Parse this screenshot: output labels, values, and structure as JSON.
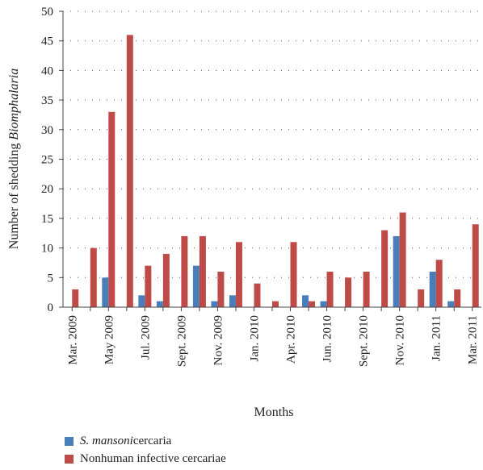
{
  "chart_data": {
    "type": "bar",
    "ylabel_prefix": "Number of shedding ",
    "ylabel_italic": "Biomphalaria",
    "xlabel": "Months",
    "ylim": [
      0,
      50
    ],
    "yticks": [
      0,
      5,
      10,
      15,
      20,
      25,
      30,
      35,
      40,
      45,
      50
    ],
    "grid": "horizontal-dotted",
    "legend_position": "bottom-left",
    "categories": [
      "Mar. 2009",
      "",
      "May 2009",
      "",
      "Jul. 2009",
      "",
      "Sept. 2009",
      "",
      "Nov. 2009",
      "",
      "Jan. 2010",
      "",
      "Apr. 2010",
      "",
      "Jun. 2010",
      "",
      "Sept. 2010",
      "",
      "Nov. 2010",
      "",
      "Jan. 2011",
      "",
      "Mar. 2011"
    ],
    "series": [
      {
        "name_italic": "S. mansoni",
        "name_rest": " cercaria",
        "color": "#4a7ebb",
        "values": [
          0,
          0,
          5,
          0,
          2,
          1,
          0,
          7,
          1,
          2,
          0,
          0,
          0,
          2,
          1,
          0,
          0,
          0,
          12,
          0,
          6,
          1,
          0
        ]
      },
      {
        "name_italic": "",
        "name_rest": "Nonhuman infective cercariae",
        "color": "#be4b48",
        "values": [
          3,
          10,
          33,
          46,
          7,
          9,
          12,
          12,
          6,
          11,
          4,
          1,
          11,
          1,
          6,
          5,
          6,
          13,
          16,
          3,
          8,
          3,
          14
        ]
      }
    ]
  }
}
